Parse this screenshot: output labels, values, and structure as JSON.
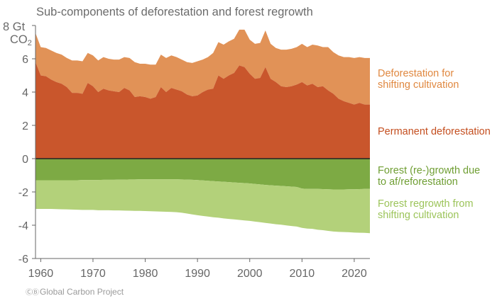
{
  "title": "Sub-components of deforestation and forest regrowth",
  "y_unit_label": "Gt",
  "y_co2_label": "CO",
  "y_co2_subscript": "2",
  "credit": "Global Carbon Project",
  "credit_icon": "cc-by-icon",
  "chart_data": {
    "type": "area",
    "title": "Sub-components of deforestation and forest regrowth",
    "ylabel": "Gt CO2",
    "xlabel": "",
    "xlim": [
      1959,
      2023
    ],
    "ylim": [
      -6,
      8
    ],
    "yticks": [
      8,
      6,
      4,
      2,
      0,
      -2,
      -4,
      -6
    ],
    "ytick_labels": [
      "8",
      "6",
      "4",
      "2",
      "0",
      "-2",
      "-4",
      "-6"
    ],
    "xticks": [
      1960,
      1970,
      1980,
      1990,
      2000,
      2010,
      2020
    ],
    "xtick_labels": [
      "1960",
      "1970",
      "1980",
      "1990",
      "2000",
      "2010",
      "2020"
    ],
    "x": [
      1959,
      1960,
      1961,
      1962,
      1963,
      1964,
      1965,
      1966,
      1967,
      1968,
      1969,
      1970,
      1971,
      1972,
      1973,
      1974,
      1975,
      1976,
      1977,
      1978,
      1979,
      1980,
      1981,
      1982,
      1983,
      1984,
      1985,
      1986,
      1987,
      1988,
      1989,
      1990,
      1991,
      1992,
      1993,
      1994,
      1995,
      1996,
      1997,
      1998,
      1999,
      2000,
      2001,
      2002,
      2003,
      2004,
      2005,
      2006,
      2007,
      2008,
      2009,
      2010,
      2011,
      2012,
      2013,
      2014,
      2015,
      2016,
      2017,
      2018,
      2019,
      2020,
      2021,
      2022,
      2023
    ],
    "series": [
      {
        "name": "Permanent deforestation",
        "label_lines": [
          "Permanent deforestation"
        ],
        "color": "#c9562c",
        "label_color": "#c44e1f",
        "values": [
          5.8,
          5.0,
          4.95,
          4.75,
          4.6,
          4.5,
          4.3,
          3.95,
          3.95,
          3.9,
          4.55,
          4.35,
          4.0,
          4.2,
          4.1,
          4.05,
          4.0,
          4.25,
          4.1,
          3.7,
          3.75,
          3.7,
          3.6,
          3.7,
          4.3,
          4.0,
          4.25,
          4.15,
          4.05,
          3.85,
          3.75,
          3.8,
          4.0,
          4.15,
          4.2,
          5.0,
          4.8,
          5.0,
          5.15,
          5.6,
          5.5,
          5.1,
          4.8,
          4.85,
          5.5,
          4.8,
          4.6,
          4.35,
          4.3,
          4.35,
          4.45,
          4.6,
          4.4,
          4.5,
          4.3,
          4.35,
          4.1,
          3.9,
          3.6,
          3.45,
          3.35,
          3.25,
          3.35,
          3.25,
          3.25
        ]
      },
      {
        "name": "Deforestation for shifting cultivation",
        "label_lines": [
          "Deforestation for",
          "shifting cultivation"
        ],
        "color": "#e19257",
        "label_color": "#e08840",
        "values": [
          1.75,
          1.7,
          1.7,
          1.75,
          1.75,
          1.75,
          1.75,
          1.95,
          1.95,
          1.95,
          1.8,
          1.85,
          1.9,
          1.9,
          1.9,
          1.9,
          1.95,
          1.85,
          1.95,
          2.1,
          1.95,
          2.0,
          2.05,
          1.95,
          1.95,
          2.05,
          1.95,
          1.95,
          1.9,
          1.95,
          2.0,
          2.05,
          1.95,
          1.95,
          2.15,
          2.0,
          2.05,
          2.05,
          2.05,
          2.15,
          2.25,
          2.05,
          2.1,
          2.1,
          2.2,
          2.1,
          2.05,
          2.2,
          2.25,
          2.25,
          2.25,
          2.3,
          2.3,
          2.35,
          2.5,
          2.35,
          2.6,
          2.5,
          2.6,
          2.65,
          2.75,
          2.8,
          2.75,
          2.8,
          2.8
        ]
      },
      {
        "name": "Forest (re-)growth due to af/reforestation",
        "label_lines": [
          "Forest (re-)growth due",
          "to af/reforestation"
        ],
        "color": "#7daa44",
        "label_color": "#6f9e33",
        "values": [
          -1.3,
          -1.3,
          -1.3,
          -1.3,
          -1.3,
          -1.3,
          -1.3,
          -1.3,
          -1.3,
          -1.28,
          -1.28,
          -1.28,
          -1.28,
          -1.27,
          -1.27,
          -1.27,
          -1.26,
          -1.26,
          -1.25,
          -1.25,
          -1.24,
          -1.24,
          -1.24,
          -1.24,
          -1.24,
          -1.24,
          -1.24,
          -1.24,
          -1.25,
          -1.26,
          -1.27,
          -1.29,
          -1.31,
          -1.33,
          -1.35,
          -1.37,
          -1.39,
          -1.41,
          -1.43,
          -1.45,
          -1.47,
          -1.49,
          -1.52,
          -1.55,
          -1.58,
          -1.6,
          -1.62,
          -1.64,
          -1.66,
          -1.68,
          -1.7,
          -1.8,
          -1.82,
          -1.82,
          -1.82,
          -1.83,
          -1.84,
          -1.85,
          -1.85,
          -1.85,
          -1.84,
          -1.84,
          -1.83,
          -1.82,
          -1.82
        ]
      },
      {
        "name": "Forest regrowth from shifting cultivation",
        "label_lines": [
          "Forest regrowth from",
          "shifting cultivation"
        ],
        "color": "#b3d17a",
        "label_color": "#9cc45a",
        "values": [
          -1.72,
          -1.72,
          -1.72,
          -1.72,
          -1.73,
          -1.74,
          -1.75,
          -1.76,
          -1.77,
          -1.8,
          -1.8,
          -1.8,
          -1.82,
          -1.83,
          -1.83,
          -1.84,
          -1.85,
          -1.86,
          -1.88,
          -1.89,
          -1.9,
          -1.91,
          -1.92,
          -1.93,
          -1.94,
          -1.95,
          -1.96,
          -1.98,
          -2.0,
          -2.04,
          -2.08,
          -2.11,
          -2.13,
          -2.15,
          -2.17,
          -2.18,
          -2.2,
          -2.21,
          -2.22,
          -2.23,
          -2.24,
          -2.25,
          -2.26,
          -2.27,
          -2.28,
          -2.3,
          -2.32,
          -2.33,
          -2.35,
          -2.37,
          -2.38,
          -2.36,
          -2.38,
          -2.4,
          -2.45,
          -2.47,
          -2.5,
          -2.53,
          -2.55,
          -2.56,
          -2.58,
          -2.6,
          -2.62,
          -2.64,
          -2.66
        ]
      }
    ]
  }
}
